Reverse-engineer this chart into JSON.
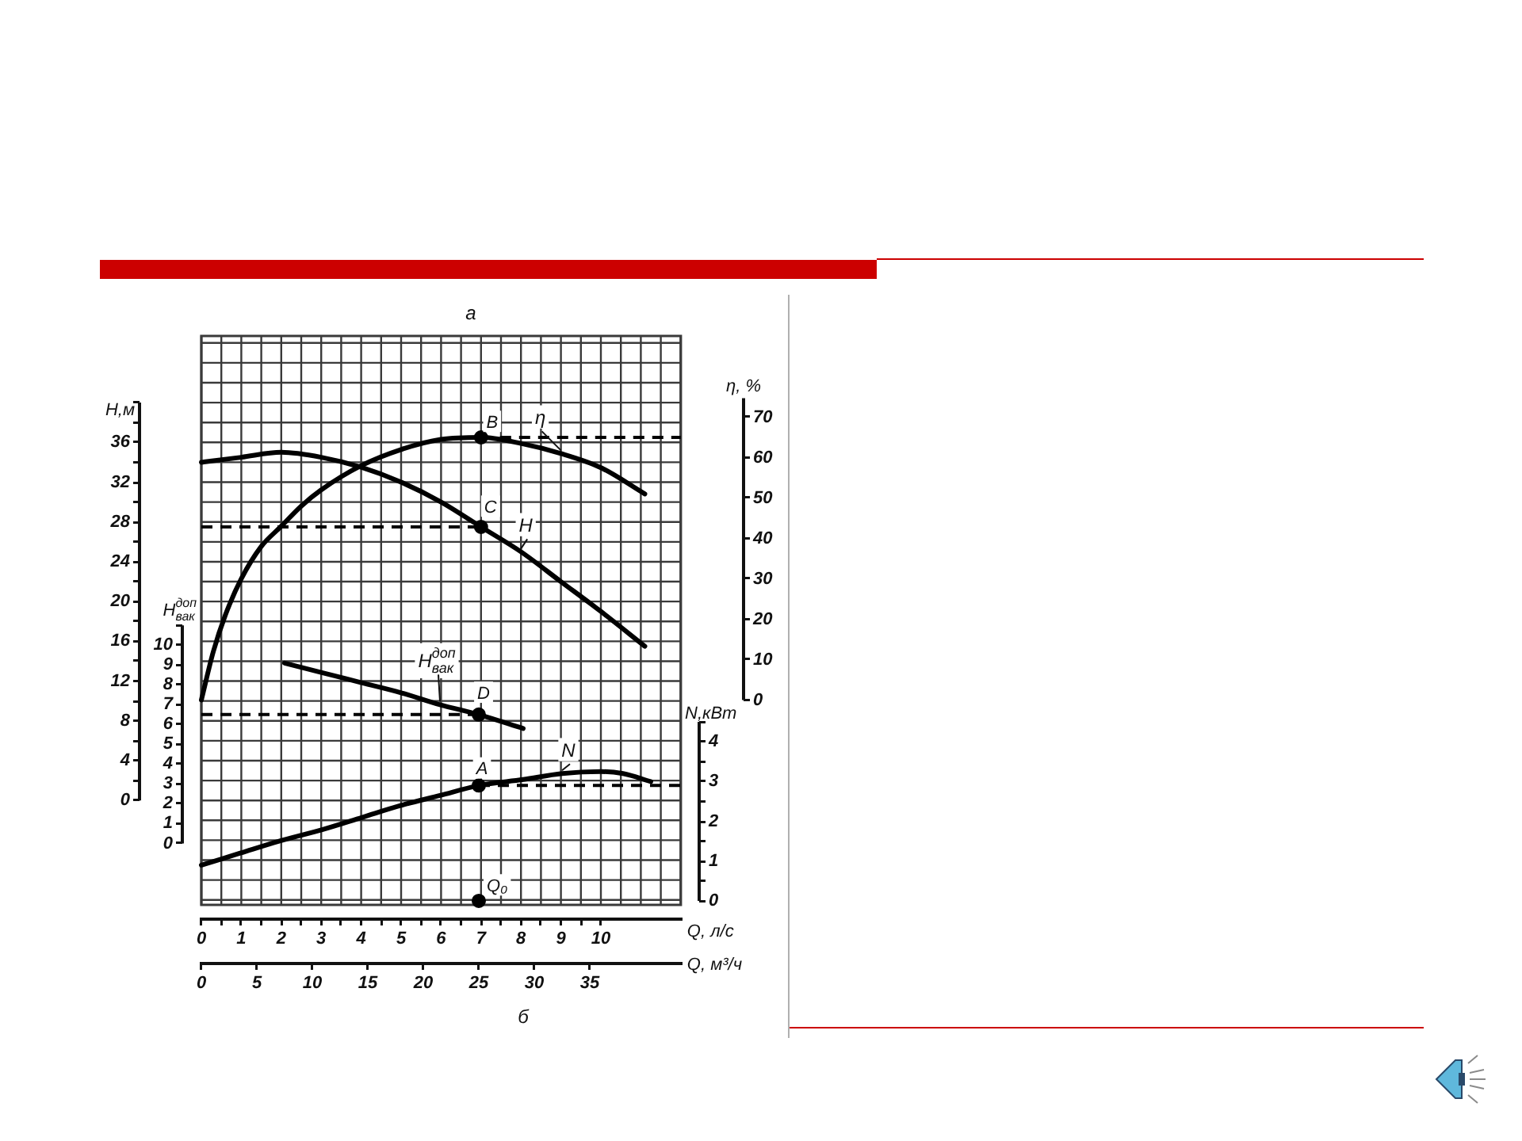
{
  "chart_data": [
    {
      "type": "line",
      "title": "а",
      "xlabel": "Q, л/с",
      "ylabel": "H,м",
      "y2label": "η, %",
      "xlim": [
        0,
        12
      ],
      "xticks": [
        0,
        {
          "value": 0.5,
          "label": null
        },
        1,
        {
          "value": 1.5,
          "label": null
        },
        2,
        {
          "value": 2.5,
          "label": null
        },
        3,
        {
          "value": 3.5,
          "label": null
        },
        4,
        {
          "value": 4.5,
          "label": null
        },
        5,
        {
          "value": 5.5,
          "label": null
        },
        6,
        {
          "value": 6.5,
          "label": null
        },
        7,
        {
          "value": 7.5,
          "label": null
        },
        8,
        {
          "value": 8.5,
          "label": null
        },
        9,
        {
          "value": 9.5,
          "label": null
        },
        10
      ],
      "ylim": [
        -10.5,
        46.7
      ],
      "yticks": [
        0,
        {
          "value": 2,
          "label": null
        },
        4,
        {
          "value": 6,
          "label": null
        },
        8,
        {
          "value": 10,
          "label": null
        },
        12,
        {
          "value": 14,
          "label": null
        },
        16,
        {
          "value": 18,
          "label": null
        },
        20,
        {
          "value": 22,
          "label": null
        },
        24,
        {
          "value": 26,
          "label": null
        },
        28,
        {
          "value": 30,
          "label": null
        },
        32,
        {
          "value": 34,
          "label": null
        },
        36,
        {
          "value": 38,
          "label": null
        },
        {
          "value": 40,
          "label": null
        }
      ],
      "y2lim": [
        -50.7,
        90.1
      ],
      "y2ticks": [
        0,
        10,
        20,
        30,
        40,
        50,
        60,
        70
      ],
      "grid": true,
      "series": [
        {
          "name": "H",
          "color": "#000000",
          "x": [
            0,
            1,
            2,
            3,
            4,
            5,
            6,
            7,
            8,
            9,
            10,
            11.1
          ],
          "values": [
            34,
            34.5,
            35,
            34.5,
            33.5,
            32,
            30,
            27.5,
            25,
            22,
            19,
            15.5
          ]
        },
        {
          "name": "η",
          "axis": "y2",
          "color": "#000000",
          "x": [
            0,
            0.3,
            0.6,
            1,
            1.5,
            2,
            2.5,
            3,
            4,
            5,
            6,
            7,
            8,
            9,
            10,
            11.1
          ],
          "values": [
            0,
            12,
            21,
            30,
            38,
            43,
            48,
            52,
            58,
            62,
            64.5,
            65,
            63.5,
            61,
            57.5,
            51
          ]
        },
        {
          "color": "#000000",
          "line_style": "dashed",
          "x": [
            0,
            7
          ],
          "values": [
            27.5,
            27.5
          ]
        },
        {
          "axis": "y2",
          "color": "#000000",
          "line_style": "dashed",
          "x": [
            7,
            12
          ],
          "values": [
            65,
            65
          ]
        },
        {
          "name": "B",
          "type": "scatter",
          "axis": "y2",
          "color": "#000000",
          "marker": "circle",
          "x": [
            7
          ],
          "values": [
            65
          ]
        },
        {
          "name": "C",
          "type": "scatter",
          "color": "#000000",
          "marker": "circle",
          "x": [
            7
          ],
          "values": [
            27.5
          ]
        }
      ],
      "annotations": [
        "б"
      ]
    },
    {
      "type": "line",
      "xlabel": "Q, м³/ч",
      "ylabel": "H$^{доп}$$_{вак}$",
      "y2label": "N,кВт",
      "xlim": [
        0,
        43.2
      ],
      "xticks": [
        0,
        5,
        10,
        15,
        20,
        25,
        30,
        35
      ],
      "ylim": [
        -3.1,
        25.6
      ],
      "yticks": [
        0,
        1,
        2,
        3,
        4,
        5,
        6,
        7,
        8,
        9,
        10,
        {
          "value": 11,
          "label": null
        }
      ],
      "y2lim": [
        -0.1,
        14.2
      ],
      "y2ticks": [
        0,
        {
          "value": 0.5,
          "label": null
        },
        1,
        {
          "value": 1.5,
          "label": null
        },
        2,
        {
          "value": 2.5,
          "label": null
        },
        3,
        {
          "value": 3.5,
          "label": null
        },
        4,
        {
          "value": 4.5,
          "label": null
        }
      ],
      "series": [
        {
          "name": "H$^{доп}$$_{вак}$",
          "color": "#000000",
          "x": [
            7.5,
            11,
            14.5,
            18,
            21.5,
            25,
            29
          ],
          "values": [
            9.1,
            8.6,
            8.1,
            7.6,
            7,
            6.5,
            5.8
          ]
        },
        {
          "name": "N",
          "axis": "y2",
          "color": "#000000",
          "x": [
            0,
            3.5,
            7,
            11,
            14.5,
            18,
            21.5,
            25,
            29,
            32.5,
            36,
            38,
            40.5
          ],
          "values": [
            0.9,
            1.2,
            1.5,
            1.8,
            2.1,
            2.4,
            2.65,
            2.9,
            3.05,
            3.2,
            3.25,
            3.2,
            3
          ]
        },
        {
          "color": "#000000",
          "line_style": "dashed",
          "x": [
            0,
            25
          ],
          "values": [
            6.5,
            6.5
          ]
        },
        {
          "axis": "y2",
          "color": "#000000",
          "line_style": "dashed",
          "x": [
            25,
            43.2
          ],
          "values": [
            2.9,
            2.9
          ]
        },
        {
          "name": "A",
          "type": "scatter",
          "axis": "y2",
          "color": "#000000",
          "marker": "circle",
          "x": [
            25
          ],
          "values": [
            2.9
          ]
        },
        {
          "name": "D",
          "type": "scatter",
          "color": "#000000",
          "marker": "circle",
          "x": [
            25
          ],
          "values": [
            6.5
          ]
        },
        {
          "name": "Q₀",
          "type": "scatter",
          "axis": "y2",
          "color": "#000000",
          "marker": "circle",
          "x": [
            25
          ],
          "values": [
            0
          ]
        }
      ]
    }
  ]
}
